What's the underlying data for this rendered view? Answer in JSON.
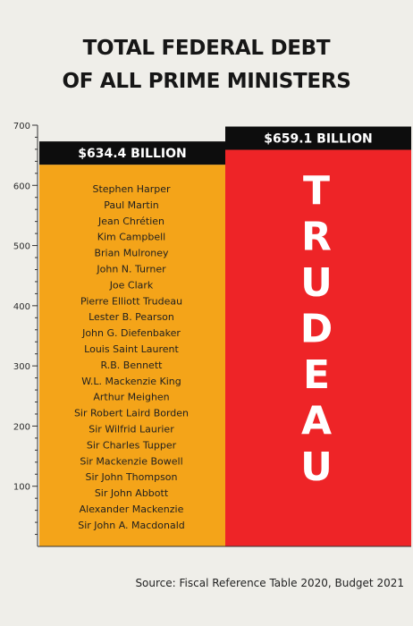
{
  "title_lines": [
    "TOTAL FEDERAL DEBT",
    "OF ALL PRIME MINISTERS"
  ],
  "source": "Source: Fiscal Reference Table 2020, Budget 2021",
  "chart_data": {
    "type": "bar",
    "ylim": [
      0,
      700
    ],
    "yticks": [
      100,
      200,
      300,
      400,
      500,
      600,
      700
    ],
    "bars": [
      {
        "value": 634.4,
        "value_label": "$634.4 BILLION",
        "color": "#f4a419",
        "names": [
          "Stephen Harper",
          "Paul Martin",
          "Jean Chrétien",
          "Kim Campbell",
          "Brian Mulroney",
          "John N. Turner",
          "Joe Clark",
          "Pierre Elliott Trudeau",
          "Lester B. Pearson",
          "John G. Diefenbaker",
          "Louis Saint Laurent",
          "R.B. Bennett",
          "W.L. Mackenzie King",
          "Arthur Meighen",
          "Sir Robert Laird Borden",
          "Sir Wilfrid Laurier",
          "Sir Charles Tupper",
          "Sir Mackenzie Bowell",
          "Sir John Thompson",
          "Sir John Abbott",
          "Alexander Mackenzie",
          "Sir John A. Macdonald"
        ]
      },
      {
        "value": 659.1,
        "value_label": "$659.1 BILLION",
        "color": "#ee2427",
        "big_label": "TRUDEAU"
      }
    ]
  }
}
